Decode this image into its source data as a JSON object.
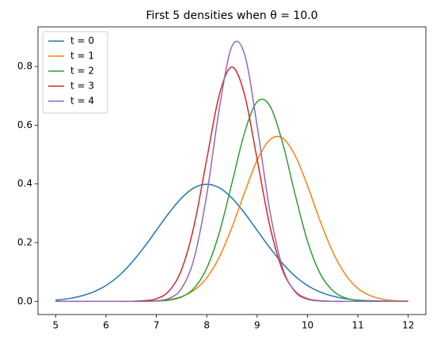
{
  "chart_data": {
    "type": "line",
    "title": "First 5 densities when θ = 10.0",
    "x": [
      5,
      5.25,
      5.5,
      5.75,
      6,
      6.25,
      6.5,
      6.75,
      7,
      7.25,
      7.5,
      7.75,
      8,
      8.25,
      8.5,
      8.75,
      9,
      9.25,
      9.5,
      9.75,
      10,
      10.25,
      10.5,
      10.75,
      11,
      11.25,
      11.5,
      11.75,
      12
    ],
    "series": [
      {
        "name": "t = 0",
        "color": "#1f77b4",
        "values": [
          0.004,
          0.009,
          0.018,
          0.032,
          0.054,
          0.086,
          0.13,
          0.183,
          0.242,
          0.301,
          0.352,
          0.387,
          0.399,
          0.387,
          0.352,
          0.301,
          0.242,
          0.183,
          0.13,
          0.086,
          0.054,
          0.032,
          0.018,
          0.009,
          0.004,
          0.002,
          0.001,
          0,
          0
        ]
      },
      {
        "name": "t = 1",
        "color": "#ff7f0e",
        "values": [
          0,
          0,
          0,
          0,
          0,
          0,
          0,
          0.001,
          0.002,
          0.006,
          0.016,
          0.038,
          0.08,
          0.151,
          0.252,
          0.37,
          0.48,
          0.55,
          0.557,
          0.498,
          0.394,
          0.274,
          0.169,
          0.092,
          0.044,
          0.019,
          0.007,
          0.002,
          0.001
        ]
      },
      {
        "name": "t = 2",
        "color": "#2ca02c",
        "values": [
          0,
          0,
          0,
          0,
          0,
          0,
          0,
          0,
          0.001,
          0.004,
          0.015,
          0.045,
          0.113,
          0.234,
          0.403,
          0.574,
          0.68,
          0.667,
          0.543,
          0.367,
          0.205,
          0.095,
          0.037,
          0.012,
          0.003,
          0.001,
          0,
          0,
          0
        ]
      },
      {
        "name": "t = 3",
        "color": "#d62728",
        "values": [
          0,
          0,
          0,
          0,
          0,
          0,
          0,
          0.002,
          0.009,
          0.035,
          0.108,
          0.259,
          0.484,
          0.704,
          0.798,
          0.704,
          0.484,
          0.259,
          0.108,
          0.035,
          0.009,
          0.002,
          0,
          0,
          0,
          0,
          0,
          0,
          0
        ]
      },
      {
        "name": "t = 4",
        "color": "#9467bd",
        "values": [
          0,
          0,
          0,
          0,
          0,
          0,
          0,
          0,
          0.002,
          0.01,
          0.044,
          0.147,
          0.363,
          0.657,
          0.869,
          0.842,
          0.598,
          0.311,
          0.118,
          0.033,
          0.007,
          0.001,
          0,
          0,
          0,
          0,
          0,
          0,
          0
        ]
      }
    ],
    "xlim": [
      4.65,
      12.35
    ],
    "xticks": [
      5,
      6,
      7,
      8,
      9,
      10,
      11,
      12
    ],
    "ylim": [
      -0.045,
      0.935
    ],
    "yticks": [
      0.0,
      0.2,
      0.4,
      0.6,
      0.8
    ],
    "legend": "upper left"
  }
}
